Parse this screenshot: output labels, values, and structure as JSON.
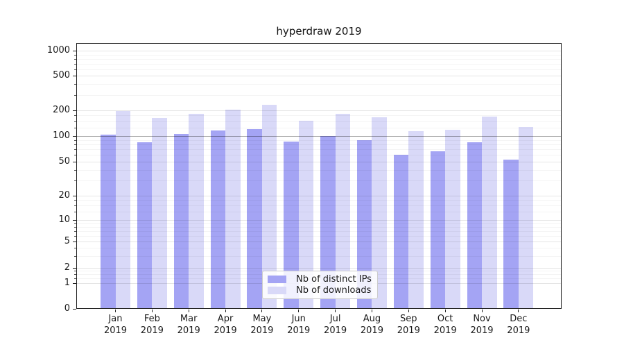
{
  "chart_data": {
    "type": "bar",
    "title": "hyperdraw 2019",
    "categories": [
      "Jan 2019",
      "Feb 2019",
      "Mar 2019",
      "Apr 2019",
      "May 2019",
      "Jun 2019",
      "Jul 2019",
      "Aug 2019",
      "Sep 2019",
      "Oct 2019",
      "Nov 2019",
      "Dec 2019"
    ],
    "series": [
      {
        "name": "Nb of distinct IPs",
        "color": "#a4a4f4",
        "values": [
          103,
          85,
          106,
          117,
          120,
          86,
          100,
          89,
          60,
          66,
          84,
          53
        ]
      },
      {
        "name": "Nb of downloads",
        "color": "#d9d9f8",
        "values": [
          199,
          164,
          183,
          205,
          232,
          152,
          182,
          168,
          114,
          118,
          170,
          127
        ]
      }
    ],
    "xlabel": "",
    "ylabel": "",
    "yscale": "symlog",
    "ytick_values": [
      0,
      1,
      2,
      5,
      10,
      20,
      50,
      100,
      200,
      500,
      1000
    ],
    "ylim": [
      0,
      1200
    ],
    "grid": true,
    "emphasized_gridline_value": 100,
    "legend_position": "lower center"
  }
}
